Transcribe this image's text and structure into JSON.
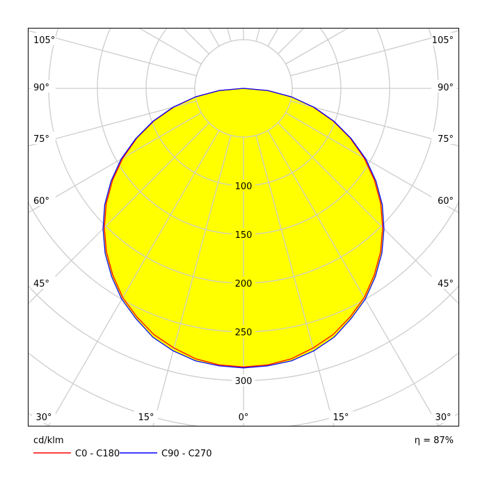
{
  "chart_data": {
    "type": "polar",
    "unit_label": "cd/klm",
    "efficiency_label": "η = 87%",
    "radial_ticks": [
      100,
      150,
      200,
      250,
      300
    ],
    "radial_rings": [
      50,
      100,
      150,
      200,
      250,
      300,
      350,
      400
    ],
    "angle_labels_side": [
      "105°",
      "90°",
      "75°",
      "60°",
      "45°"
    ],
    "angle_labels_bottom": [
      "30°",
      "15°",
      "0°",
      "15°",
      "30°"
    ],
    "angles_deg": [
      0,
      5,
      10,
      15,
      20,
      25,
      30,
      35,
      40,
      45,
      50,
      55,
      60,
      65,
      70,
      75,
      80,
      85,
      90
    ],
    "series": [
      {
        "name": "C0 - C180",
        "color": "#ff0000",
        "values": [
          286,
          285,
          282,
          276,
          269,
          259,
          248,
          234,
          219,
          202,
          184,
          164,
          143,
          121,
          98,
          74,
          50,
          25,
          0
        ]
      },
      {
        "name": "C90 - C270",
        "color": "#0000ff",
        "values": [
          287,
          286,
          284,
          279,
          272,
          261,
          250,
          236,
          221,
          204,
          186,
          166,
          145,
          122,
          99,
          75,
          50,
          25,
          0
        ]
      }
    ],
    "fill_color": "#ffff00",
    "grid_color": "#cccccc"
  }
}
